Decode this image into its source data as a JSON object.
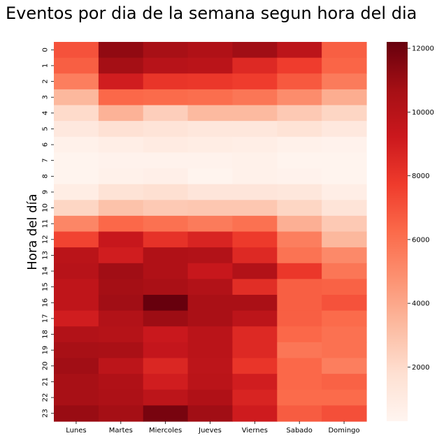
{
  "chart_data": {
    "type": "heatmap",
    "title": "Eventos por dia de la semana segun hora del dia",
    "xlabel": "",
    "ylabel": "Hora del día",
    "columns": [
      "Lunes",
      "Martes",
      "Miercoles",
      "Jueves",
      "Viernes",
      "Sabado",
      "Domingo"
    ],
    "rows": [
      "0",
      "1",
      "2",
      "3",
      "4",
      "5",
      "6",
      "7",
      "8",
      "9",
      "10",
      "11",
      "12",
      "13",
      "14",
      "15",
      "16",
      "17",
      "18",
      "19",
      "20",
      "21",
      "22",
      "23"
    ],
    "values": [
      [
        7000,
        11200,
        10600,
        10300,
        10800,
        9800,
        6600
      ],
      [
        6600,
        10700,
        10000,
        9900,
        8500,
        7700,
        6400
      ],
      [
        5500,
        9000,
        8000,
        7900,
        7700,
        6800,
        5600
      ],
      [
        3400,
        6300,
        6200,
        6100,
        5800,
        5000,
        3800
      ],
      [
        2000,
        3600,
        2500,
        3300,
        3300,
        2700,
        2200
      ],
      [
        1200,
        1700,
        1500,
        1300,
        1300,
        1600,
        1200
      ],
      [
        600,
        800,
        1000,
        900,
        800,
        600,
        500
      ],
      [
        400,
        500,
        500,
        500,
        600,
        400,
        400
      ],
      [
        400,
        600,
        700,
        400,
        600,
        500,
        400
      ],
      [
        900,
        1600,
        1800,
        1400,
        1400,
        1300,
        800
      ],
      [
        2200,
        3000,
        2700,
        2800,
        2800,
        2200,
        1500
      ],
      [
        5200,
        6300,
        6000,
        5600,
        6000,
        3700,
        2700
      ],
      [
        7500,
        9400,
        8100,
        8700,
        7800,
        5500,
        3400
      ],
      [
        9900,
        9000,
        10300,
        10200,
        8500,
        5900,
        5100
      ],
      [
        10000,
        10800,
        10300,
        9400,
        10200,
        7900,
        5800
      ],
      [
        9700,
        10700,
        10500,
        10200,
        8300,
        6600,
        6500
      ],
      [
        9700,
        10800,
        12200,
        10500,
        10500,
        6600,
        7000
      ],
      [
        9000,
        10200,
        10900,
        10500,
        9800,
        6600,
        6200
      ],
      [
        10200,
        10100,
        9300,
        9900,
        8500,
        6300,
        6000
      ],
      [
        10600,
        10500,
        9500,
        9900,
        8500,
        5800,
        6000
      ],
      [
        10800,
        9800,
        8600,
        9800,
        8000,
        6300,
        5500
      ],
      [
        10600,
        10300,
        9000,
        9900,
        9000,
        6300,
        6500
      ],
      [
        10600,
        10400,
        9800,
        10300,
        8700,
        6200,
        6200
      ],
      [
        11000,
        10700,
        11800,
        10800,
        9100,
        6700,
        7100
      ]
    ],
    "colorbar": {
      "min": 300,
      "max": 12200,
      "ticks": [
        2000,
        4000,
        6000,
        8000,
        10000,
        12000
      ],
      "colormap": "Reds"
    },
    "colors": {
      "stops": [
        "#fff5f0",
        "#fee0d2",
        "#fcbba1",
        "#fc9272",
        "#fb6a4a",
        "#ef3b2c",
        "#cb181d",
        "#a50f15",
        "#67000d"
      ]
    }
  }
}
